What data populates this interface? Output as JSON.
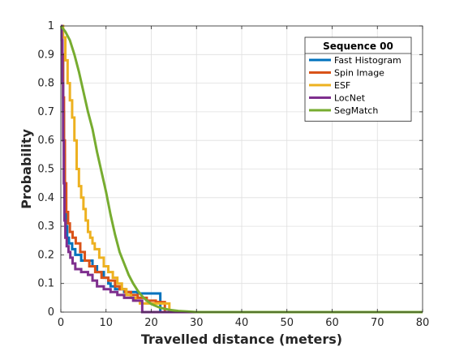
{
  "chart_data": {
    "type": "line",
    "title": "",
    "xlabel": "Travelled distance (meters)",
    "ylabel": "Probability",
    "xlim": [
      0,
      80
    ],
    "ylim": [
      0,
      1
    ],
    "xticks": [
      0,
      10,
      20,
      30,
      40,
      50,
      60,
      70,
      80
    ],
    "yticks": [
      0,
      0.1,
      0.2,
      0.3,
      0.4,
      0.5,
      0.6,
      0.7,
      0.8,
      0.9,
      1
    ],
    "grid": true,
    "legend": {
      "title": "Sequence 00",
      "placement": "top-right"
    },
    "series": [
      {
        "name": "Fast Histogram",
        "color": "#0072BD",
        "step": true,
        "points": [
          [
            0,
            1
          ],
          [
            0.3,
            0.9
          ],
          [
            0.5,
            0.7
          ],
          [
            0.7,
            0.55
          ],
          [
            0.9,
            0.4
          ],
          [
            1.1,
            0.3
          ],
          [
            1.4,
            0.26
          ],
          [
            1.8,
            0.24
          ],
          [
            2.5,
            0.22
          ],
          [
            3.2,
            0.2
          ],
          [
            4.5,
            0.18
          ],
          [
            6,
            0.18
          ],
          [
            7,
            0.16
          ],
          [
            8,
            0.14
          ],
          [
            9.5,
            0.12
          ],
          [
            10.5,
            0.1
          ],
          [
            11,
            0.09
          ],
          [
            12,
            0.08
          ],
          [
            14,
            0.07
          ],
          [
            17,
            0.065
          ],
          [
            22,
            0.065
          ],
          [
            22,
            0
          ],
          [
            80,
            0
          ]
        ]
      },
      {
        "name": "Spin Image",
        "color": "#D95319",
        "step": true,
        "points": [
          [
            0,
            1
          ],
          [
            0.3,
            0.9
          ],
          [
            0.5,
            0.75
          ],
          [
            0.7,
            0.6
          ],
          [
            0.9,
            0.45
          ],
          [
            1.2,
            0.35
          ],
          [
            1.6,
            0.31
          ],
          [
            2,
            0.28
          ],
          [
            2.6,
            0.26
          ],
          [
            3.3,
            0.24
          ],
          [
            4.3,
            0.21
          ],
          [
            5.3,
            0.18
          ],
          [
            6.3,
            0.16
          ],
          [
            7.6,
            0.14
          ],
          [
            9,
            0.12
          ],
          [
            10.5,
            0.11
          ],
          [
            12,
            0.09
          ],
          [
            13,
            0.08
          ],
          [
            14.2,
            0.07
          ],
          [
            15.5,
            0.06
          ],
          [
            17,
            0.05
          ],
          [
            19,
            0.04
          ],
          [
            21,
            0.035
          ],
          [
            23,
            0.03
          ],
          [
            23,
            0
          ],
          [
            80,
            0
          ]
        ]
      },
      {
        "name": "ESF",
        "color": "#EDB120",
        "step": true,
        "points": [
          [
            0,
            1
          ],
          [
            0.5,
            0.96
          ],
          [
            1,
            0.88
          ],
          [
            1.5,
            0.8
          ],
          [
            2,
            0.74
          ],
          [
            2.5,
            0.68
          ],
          [
            3,
            0.6
          ],
          [
            3.5,
            0.5
          ],
          [
            4,
            0.44
          ],
          [
            4.5,
            0.4
          ],
          [
            5,
            0.36
          ],
          [
            5.5,
            0.32
          ],
          [
            6,
            0.28
          ],
          [
            6.5,
            0.26
          ],
          [
            7,
            0.24
          ],
          [
            7.5,
            0.22
          ],
          [
            8.5,
            0.19
          ],
          [
            9.5,
            0.16
          ],
          [
            10.5,
            0.14
          ],
          [
            11.5,
            0.12
          ],
          [
            12.5,
            0.1
          ],
          [
            13.5,
            0.08
          ],
          [
            14.5,
            0.06
          ],
          [
            15.5,
            0.05
          ],
          [
            16.5,
            0.04
          ],
          [
            17.5,
            0.03
          ],
          [
            22,
            0.03
          ],
          [
            24,
            0.025
          ],
          [
            24,
            0
          ],
          [
            80,
            0
          ]
        ]
      },
      {
        "name": "LocNet",
        "color": "#7E2F8E",
        "step": true,
        "points": [
          [
            0,
            1
          ],
          [
            0.2,
            0.95
          ],
          [
            0.35,
            0.8
          ],
          [
            0.5,
            0.6
          ],
          [
            0.65,
            0.45
          ],
          [
            0.8,
            0.32
          ],
          [
            1,
            0.26
          ],
          [
            1.3,
            0.23
          ],
          [
            1.7,
            0.21
          ],
          [
            2.1,
            0.19
          ],
          [
            2.6,
            0.17
          ],
          [
            3.2,
            0.15
          ],
          [
            4.5,
            0.14
          ],
          [
            6,
            0.13
          ],
          [
            7,
            0.11
          ],
          [
            8,
            0.09
          ],
          [
            9.5,
            0.08
          ],
          [
            11,
            0.07
          ],
          [
            12.5,
            0.06
          ],
          [
            14,
            0.05
          ],
          [
            16,
            0.04
          ],
          [
            18,
            0.03
          ],
          [
            18,
            0
          ],
          [
            80,
            0
          ]
        ]
      },
      {
        "name": "SegMatch",
        "color": "#77AC30",
        "step": false,
        "points": [
          [
            0,
            1
          ],
          [
            1,
            0.98
          ],
          [
            2,
            0.95
          ],
          [
            3,
            0.9
          ],
          [
            4,
            0.84
          ],
          [
            5,
            0.77
          ],
          [
            6,
            0.7
          ],
          [
            7,
            0.64
          ],
          [
            8,
            0.56
          ],
          [
            9,
            0.49
          ],
          [
            10,
            0.42
          ],
          [
            11,
            0.34
          ],
          [
            12,
            0.27
          ],
          [
            13,
            0.21
          ],
          [
            14,
            0.17
          ],
          [
            15,
            0.13
          ],
          [
            16,
            0.1
          ],
          [
            17,
            0.075
          ],
          [
            18,
            0.055
          ],
          [
            19,
            0.04
          ],
          [
            20,
            0.028
          ],
          [
            22,
            0.015
          ],
          [
            24,
            0.008
          ],
          [
            26,
            0.004
          ],
          [
            28,
            0.002
          ],
          [
            30,
            0
          ],
          [
            80,
            0
          ]
        ]
      }
    ]
  }
}
